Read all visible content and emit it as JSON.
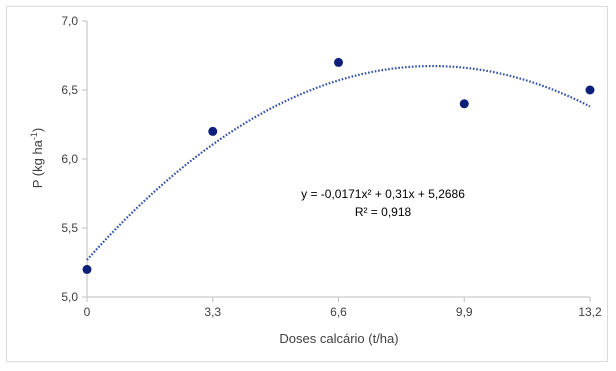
{
  "chart_data": {
    "type": "scatter",
    "xlabel": "Doses calcário (t/ha)",
    "ylabel_main": "P (kg ha",
    "ylabel_sup": "-1",
    "ylabel_end": ")",
    "xlim": [
      0,
      13.2
    ],
    "ylim": [
      5.0,
      7.0
    ],
    "x_ticks": [
      0,
      3.3,
      6.6,
      9.9,
      13.2
    ],
    "x_tick_labels": [
      "0",
      "3,3",
      "6,6",
      "9,9",
      "13,2"
    ],
    "y_ticks": [
      5.0,
      5.5,
      6.0,
      6.5,
      7.0
    ],
    "y_tick_labels": [
      "5,0",
      "5,5",
      "6,0",
      "6,5",
      "7,0"
    ],
    "grid": false,
    "points": [
      {
        "x": 0,
        "y": 5.2
      },
      {
        "x": 3.3,
        "y": 6.2
      },
      {
        "x": 6.6,
        "y": 6.7
      },
      {
        "x": 9.9,
        "y": 6.4
      },
      {
        "x": 13.2,
        "y": 6.5
      }
    ],
    "trendline": {
      "type": "polynomial",
      "a": -0.0171,
      "b": 0.31,
      "c": 5.2686,
      "color": "#2f4fa8"
    },
    "equation": "y = -0,0171x² + 0,31x + 5,2686",
    "r_squared": "R² = 0,918",
    "point_color": "#0d1f78"
  }
}
